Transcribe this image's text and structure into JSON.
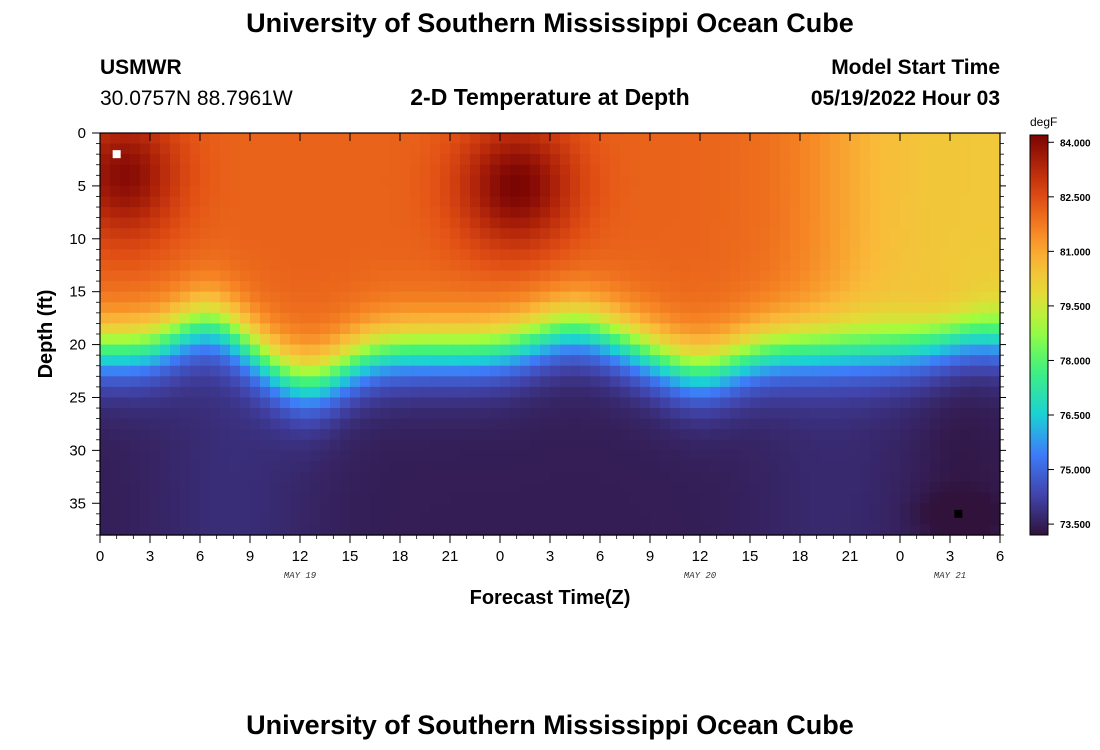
{
  "page": {
    "title_top": "University of Southern Mississippi Ocean Cube",
    "title_bottom": "University of Southern Mississippi Ocean Cube",
    "station_name": "USMWR",
    "station_coords": "30.0757N  88.7961W",
    "plot_subtitle": "2-D Temperature at Depth",
    "model_start_label": "Model Start Time",
    "model_start_value": "05/19/2022 Hour 03"
  },
  "chart_data": {
    "type": "heatmap",
    "title": "2-D Temperature at Depth",
    "xlabel": "Forecast Time(Z)",
    "ylabel": "Depth (ft)",
    "x_unit": "forecast hours (Z)",
    "xlim": [
      0,
      54
    ],
    "ylim": [
      38,
      0
    ],
    "x_ticks": [
      {
        "h": 0,
        "label": "0"
      },
      {
        "h": 3,
        "label": "3"
      },
      {
        "h": 6,
        "label": "6"
      },
      {
        "h": 9,
        "label": "9"
      },
      {
        "h": 12,
        "label": "12"
      },
      {
        "h": 15,
        "label": "15"
      },
      {
        "h": 18,
        "label": "18"
      },
      {
        "h": 21,
        "label": "21"
      },
      {
        "h": 24,
        "label": "0"
      },
      {
        "h": 27,
        "label": "3"
      },
      {
        "h": 30,
        "label": "6"
      },
      {
        "h": 33,
        "label": "9"
      },
      {
        "h": 36,
        "label": "12"
      },
      {
        "h": 39,
        "label": "15"
      },
      {
        "h": 42,
        "label": "18"
      },
      {
        "h": 45,
        "label": "21"
      },
      {
        "h": 48,
        "label": "0"
      },
      {
        "h": 51,
        "label": "3"
      },
      {
        "h": 54,
        "label": "6"
      }
    ],
    "date_labels": [
      {
        "h": 12,
        "label": "MAY 19"
      },
      {
        "h": 36,
        "label": "MAY 20"
      },
      {
        "h": 51,
        "label": "MAY 21"
      }
    ],
    "y_ticks": [
      0,
      5,
      10,
      15,
      20,
      25,
      30,
      35
    ],
    "colorbar": {
      "unit": "degF",
      "vmin": 73.2,
      "vmax": 84.2,
      "ticks": [
        {
          "v": 84.0,
          "label": "84.000"
        },
        {
          "v": 82.5,
          "label": "82.500"
        },
        {
          "v": 81.0,
          "label": "81.000"
        },
        {
          "v": 79.5,
          "label": "79.500"
        },
        {
          "v": 78.0,
          "label": "78.000"
        },
        {
          "v": 76.5,
          "label": "76.500"
        },
        {
          "v": 75.0,
          "label": "75.000"
        },
        {
          "v": 73.5,
          "label": "73.500"
        }
      ]
    },
    "markers": [
      {
        "name": "max-temperature-marker",
        "h": 1.0,
        "depth": 2,
        "color": "#ffffff"
      },
      {
        "name": "min-temperature-marker",
        "h": 51.5,
        "depth": 36,
        "color": "#000000"
      }
    ],
    "description_of_field": {
      "surface_max_regions_degF": [
        {
          "h": [
            0,
            4
          ],
          "value": 84.0
        },
        {
          "h": [
            22,
            28
          ],
          "value": 84.0
        }
      ],
      "late_surface_degF": 80.5,
      "thermocline_depth_ft_range": [
        16,
        30
      ],
      "bottom_min_degF": 73.3
    }
  }
}
